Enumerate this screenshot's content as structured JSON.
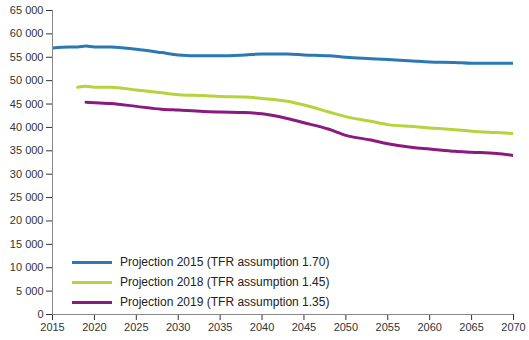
{
  "chart_data": {
    "type": "line",
    "x": [
      2015,
      2017,
      2018,
      2019,
      2020,
      2022,
      2025,
      2028,
      2030,
      2033,
      2035,
      2038,
      2040,
      2043,
      2045,
      2048,
      2050,
      2053,
      2055,
      2058,
      2060,
      2063,
      2065,
      2068,
      2070
    ],
    "series": [
      {
        "name": "Projection 2015 (TFR assumption 1.70)",
        "color": "#2b79b3",
        "values": [
          57000,
          57200,
          57200,
          57400,
          57200,
          57200,
          56700,
          56000,
          55500,
          55300,
          55300,
          55500,
          55700,
          55700,
          55500,
          55300,
          55000,
          54700,
          54500,
          54200,
          54000,
          53900,
          53700,
          53700,
          53700
        ]
      },
      {
        "name": "Projection 2018 (TFR assumption 1.45)",
        "color": "#b5d33d",
        "values": [
          null,
          null,
          48600,
          48800,
          48600,
          48600,
          48000,
          47400,
          47000,
          46800,
          46600,
          46500,
          46200,
          45600,
          44800,
          43300,
          42300,
          41300,
          40600,
          40200,
          39900,
          39500,
          39200,
          38900,
          38700
        ]
      },
      {
        "name": "Projection 2019 (TFR assumption 1.35)",
        "color": "#8b1a7f",
        "values": [
          null,
          null,
          null,
          45400,
          45300,
          45100,
          44500,
          43900,
          43700,
          43400,
          43300,
          43200,
          42900,
          41900,
          41000,
          39600,
          38300,
          37300,
          36500,
          35700,
          35400,
          34900,
          34700,
          34400,
          34000
        ]
      }
    ],
    "xlim": [
      2015,
      2070
    ],
    "xticks": [
      2015,
      2020,
      2025,
      2030,
      2035,
      2040,
      2045,
      2050,
      2055,
      2060,
      2065,
      2070
    ],
    "ylim": [
      0,
      65000
    ],
    "yticks": [
      0,
      {
        "value": 5000,
        "label": "5 000"
      },
      {
        "value": 10000,
        "label": "10 000"
      },
      {
        "value": 15000,
        "label": "15 000"
      },
      {
        "value": 20000,
        "label": "20 000"
      },
      {
        "value": 25000,
        "label": "25 000"
      },
      {
        "value": 30000,
        "label": "30 000"
      },
      {
        "value": 35000,
        "label": "35 000"
      },
      {
        "value": 40000,
        "label": "40 000"
      },
      {
        "value": 45000,
        "label": "45 000"
      },
      {
        "value": 50000,
        "label": "50 000"
      },
      {
        "value": 55000,
        "label": "55 000"
      },
      {
        "value": 60000,
        "label": "60 000"
      },
      {
        "value": 65000,
        "label": "65 000"
      }
    ],
    "grid": false,
    "legend": "bottom-left"
  }
}
